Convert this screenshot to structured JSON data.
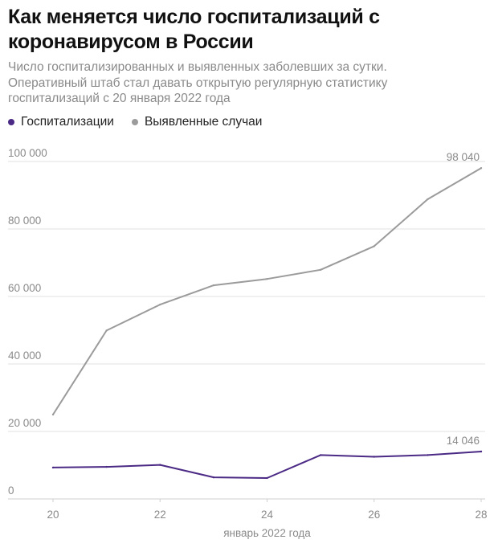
{
  "header": {
    "title": "Как меняется число госпитализаций с коронавирусом в России",
    "subtitle": "Число госпитализированных и выявленных заболевших за сутки. Оперативный штаб стал давать открытую регулярную статистику госпитализаций с 20 января 2022 года"
  },
  "legend": {
    "items": [
      {
        "label": "Госпитализации",
        "color": "#4b2a85"
      },
      {
        "label": "Выявленные случаи",
        "color": "#9b9b9b"
      }
    ]
  },
  "chart_data": {
    "type": "line",
    "x": [
      20,
      21,
      22,
      23,
      24,
      25,
      26,
      27,
      28
    ],
    "xticks": [
      "20",
      "22",
      "24",
      "26",
      "28"
    ],
    "xlabel": "январь 2022 года",
    "ylabel": "",
    "ylim": [
      0,
      100000
    ],
    "yticks": [
      "0",
      "20 000",
      "40 000",
      "60 000",
      "80 000",
      "100 000"
    ],
    "grid": true,
    "series": [
      {
        "name": "Выявленные случаи",
        "color": "#9b9b9b",
        "values": [
          25000,
          49900,
          57600,
          63300,
          65200,
          67900,
          74900,
          88800,
          98040
        ],
        "end_label": "98 040"
      },
      {
        "name": "Госпитализации",
        "color": "#4b2a85",
        "values": [
          9300,
          9500,
          10100,
          6400,
          6200,
          13000,
          12500,
          13000,
          14046
        ],
        "end_label": "14 046"
      }
    ]
  }
}
